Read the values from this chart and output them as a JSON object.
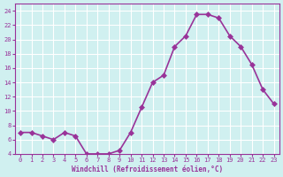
{
  "x": [
    0,
    1,
    2,
    3,
    4,
    5,
    6,
    7,
    8,
    9,
    10,
    11,
    12,
    13,
    14,
    15,
    16,
    17,
    18,
    19,
    20,
    21,
    22,
    23
  ],
  "y": [
    7,
    7,
    6.5,
    6,
    7,
    6.5,
    4,
    4,
    4,
    4.5,
    7,
    10.5,
    14,
    15,
    19,
    20.5,
    23.5,
    23.5,
    23,
    20.5,
    19,
    16.5,
    13,
    11
  ],
  "line_color": "#993399",
  "marker_color": "#993399",
  "bg_color": "#d0f0f0",
  "grid_color": "#ffffff",
  "xlabel": "Windchill (Refroidissement éolien,°C)",
  "ylim": [
    4,
    25
  ],
  "xlim": [
    -0.5,
    23.5
  ],
  "yticks": [
    4,
    6,
    8,
    10,
    12,
    14,
    16,
    18,
    20,
    22,
    24
  ],
  "xticks": [
    0,
    1,
    2,
    3,
    4,
    5,
    6,
    7,
    8,
    9,
    10,
    11,
    12,
    13,
    14,
    15,
    16,
    17,
    18,
    19,
    20,
    21,
    22,
    23
  ],
  "tick_color": "#993399",
  "label_color": "#993399",
  "line_width": 1.2,
  "marker_size": 3
}
